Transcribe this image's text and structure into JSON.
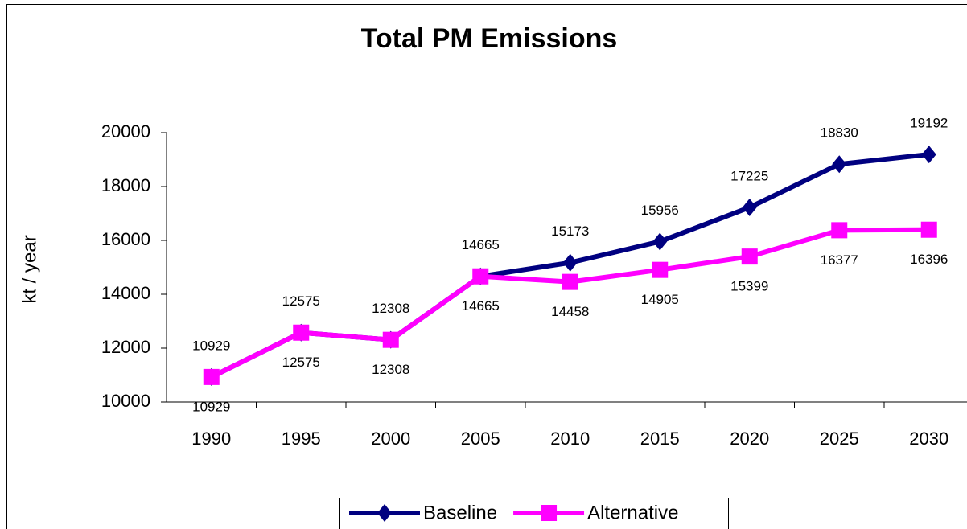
{
  "chart_data": {
    "type": "line",
    "title": "Total PM Emissions",
    "y_label": "kt / year",
    "categories": [
      "1990",
      "1995",
      "2000",
      "2005",
      "2010",
      "2015",
      "2020",
      "2025",
      "2030"
    ],
    "series": [
      {
        "name": "Baseline",
        "color": "#000080",
        "marker": "diamond",
        "values": [
          10929,
          12575,
          12308,
          14665,
          15173,
          15956,
          17225,
          18830,
          19192
        ]
      },
      {
        "name": "Alternative",
        "color": "#ff00ff",
        "marker": "square",
        "values": [
          10929,
          12575,
          12308,
          14665,
          14458,
          14905,
          15399,
          16377,
          16396
        ]
      }
    ],
    "ylim": [
      10000,
      20000
    ],
    "yticks": [
      10000,
      12000,
      14000,
      16000,
      18000,
      20000
    ],
    "grid": false,
    "legend": "bottom"
  }
}
